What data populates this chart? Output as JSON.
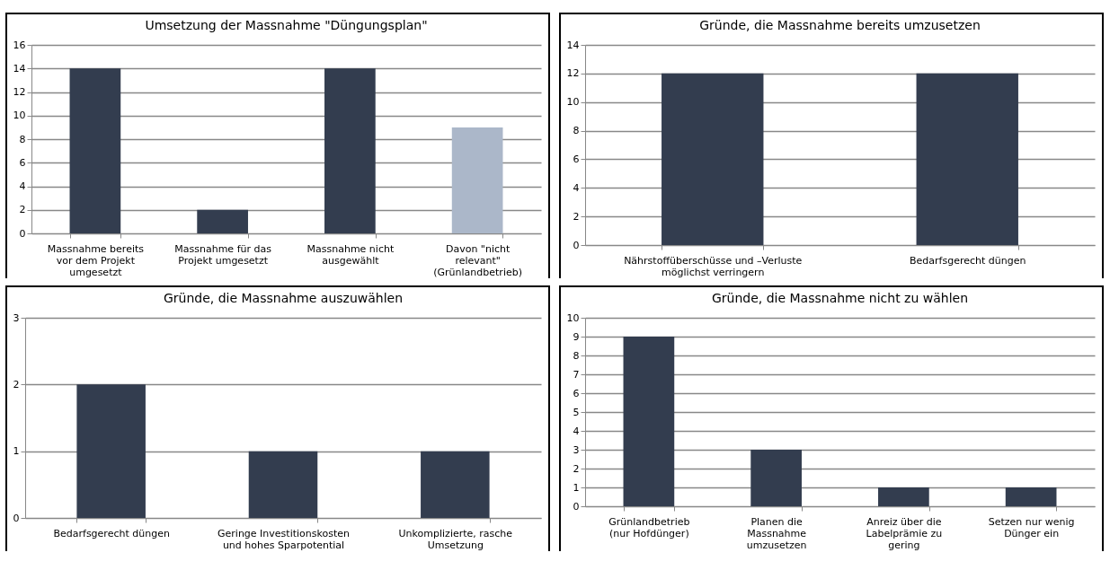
{
  "chart_data": [
    {
      "type": "bar",
      "title": "Umsetzung der Massnahme \"Düngungsplan\"",
      "categories": [
        "Massnahme bereits vor dem Projekt umgesetzt",
        "Massnahme für das Projekt umgesetzt",
        "Massnahme nicht ausgewählt",
        "Davon \"nicht relevant\" (Grünlandbetrieb)"
      ],
      "values": [
        14,
        2,
        14,
        9
      ],
      "colors": [
        "#333d4f",
        "#333d4f",
        "#333d4f",
        "#abb7c9"
      ],
      "ylim": [
        0,
        16
      ],
      "yticks": [
        0,
        2,
        4,
        6,
        8,
        10,
        12,
        14,
        16
      ],
      "grid": "y"
    },
    {
      "type": "bar",
      "title": "Gründe, die Massnahme bereits umzusetzen",
      "categories": [
        "Nährstoffüberschüsse und –Verluste möglichst verringern",
        "Bedarfsgerecht düngen"
      ],
      "values": [
        12,
        12
      ],
      "color": "#333d4f",
      "ylim": [
        0,
        14
      ],
      "yticks": [
        0,
        2,
        4,
        6,
        8,
        10,
        12,
        14
      ],
      "grid": "y"
    },
    {
      "type": "bar",
      "title": "Gründe, die Massnahme auszuwählen",
      "categories": [
        "Bedarfsgerecht düngen",
        "Geringe Investitionskosten und hohes Sparpotential",
        "Unkomplizierte, rasche Umsetzung"
      ],
      "values": [
        2,
        1,
        1
      ],
      "color": "#333d4f",
      "ylim": [
        0,
        3
      ],
      "yticks": [
        0,
        1,
        2,
        3
      ],
      "grid": "y"
    },
    {
      "type": "bar",
      "title": "Gründe, die Massnahme nicht zu wählen",
      "categories": [
        "Grünlandbetrieb (nur Hofdünger)",
        "Planen die Massnahme umzusetzen",
        "Anreiz über die Labelprämie zu gering",
        "Setzen nur wenig Dünger ein"
      ],
      "values": [
        9,
        3,
        1,
        1
      ],
      "color": "#333d4f",
      "ylim": [
        0,
        10
      ],
      "yticks": [
        0,
        1,
        2,
        3,
        4,
        5,
        6,
        7,
        8,
        9,
        10
      ],
      "grid": "y"
    }
  ]
}
